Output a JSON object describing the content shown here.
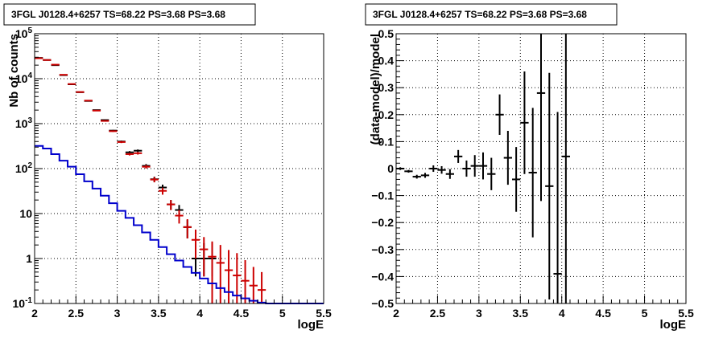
{
  "chart_data": [
    {
      "type": "line",
      "title": "3FGL J0128.4+6257 TS=68.22 PS=3.68 PS=3.68",
      "xlabel": "logE",
      "ylabel": "Nb of counts",
      "xlim": [
        2,
        5.5
      ],
      "ylim": [
        0.1,
        100000
      ],
      "yscale": "log",
      "grid": true,
      "x_ticks": [
        "2",
        "2.5",
        "3",
        "3.5",
        "4",
        "4.5",
        "5",
        "5.5"
      ],
      "y_ticks": [
        "10^-1",
        "1",
        "10",
        "10^2",
        "10^3",
        "10^4",
        "10^5"
      ],
      "bin_width": 0.1,
      "series": [
        {
          "color": "#000000",
          "style": "points-with-errors",
          "x": [
            2.05,
            2.15,
            2.25,
            2.35,
            2.45,
            2.55,
            2.65,
            2.75,
            2.85,
            2.95,
            3.05,
            3.15,
            3.25,
            3.35,
            3.45,
            3.55,
            3.65,
            3.75,
            3.85,
            3.95,
            4.05,
            4.15
          ],
          "y": [
            29000,
            26000,
            20000,
            12000,
            7500,
            5000,
            3200,
            2000,
            1200,
            700,
            400,
            230,
            250,
            115,
            58,
            38,
            16,
            12,
            5,
            1,
            1,
            1
          ],
          "yerr_low": [
            170,
            160,
            140,
            110,
            87,
            71,
            57,
            45,
            35,
            26,
            20,
            15,
            16,
            11,
            8,
            6,
            4,
            3.5,
            2.2,
            0.6,
            0.6,
            0.6
          ],
          "yerr_high": [
            170,
            160,
            140,
            110,
            87,
            71,
            57,
            45,
            35,
            26,
            20,
            15,
            16,
            11,
            8,
            6,
            4,
            3.5,
            2.2,
            1.2,
            1.2,
            1.2
          ]
        },
        {
          "color": "#cc0000",
          "style": "model-with-errors",
          "x": [
            2.05,
            2.15,
            2.25,
            2.35,
            2.45,
            2.55,
            2.65,
            2.75,
            2.85,
            2.95,
            3.05,
            3.15,
            3.25,
            3.35,
            3.45,
            3.55,
            3.65,
            3.75,
            3.85,
            3.95,
            4.05,
            4.15,
            4.25,
            4.35,
            4.45,
            4.55,
            4.65,
            4.75
          ],
          "y": [
            28500,
            26000,
            20500,
            12200,
            7600,
            5050,
            3250,
            1950,
            1150,
            680,
            390,
            210,
            220,
            110,
            57,
            32,
            16,
            9,
            5,
            2.6,
            1.6,
            1.1,
            0.8,
            0.55,
            0.42,
            0.32,
            0.25,
            0.2
          ],
          "yerr_low": [
            170,
            160,
            140,
            110,
            87,
            71,
            57,
            44,
            34,
            26,
            20,
            14,
            15,
            10,
            7.5,
            5.7,
            4,
            3,
            2.2,
            1.6,
            1.2,
            1,
            0.7,
            0.45,
            0.32,
            0.22,
            0.15,
            0.1
          ],
          "yerr_high": [
            170,
            160,
            140,
            110,
            87,
            71,
            57,
            44,
            34,
            26,
            20,
            14,
            15,
            10,
            7.5,
            5.7,
            4,
            3,
            2.5,
            1.8,
            1.4,
            1.3,
            1.2,
            1.0,
            0.9,
            0.6,
            0.4,
            0.3
          ]
        },
        {
          "color": "#0000cc",
          "style": "step",
          "edges": [
            2.0,
            2.1,
            2.2,
            2.3,
            2.4,
            2.5,
            2.6,
            2.7,
            2.8,
            2.9,
            3.0,
            3.1,
            3.2,
            3.3,
            3.4,
            3.5,
            3.6,
            3.7,
            3.8,
            3.9,
            4.0,
            4.1,
            4.2,
            4.3,
            4.4,
            4.5,
            4.6,
            4.7,
            4.8,
            4.9,
            5.0,
            5.1,
            5.2,
            5.3,
            5.4,
            5.5
          ],
          "y": [
            320,
            280,
            210,
            150,
            110,
            75,
            52,
            36,
            25,
            17,
            11.5,
            8,
            5.5,
            3.8,
            2.6,
            1.8,
            1.25,
            0.9,
            0.65,
            0.48,
            0.36,
            0.28,
            0.22,
            0.18,
            0.15,
            0.13,
            0.115,
            0.105,
            0.1,
            0.1,
            0.1,
            0.1,
            0.1,
            0.1,
            0.1
          ]
        }
      ]
    },
    {
      "type": "scatter",
      "title": "3FGL J0128.4+6257 TS=68.22 PS=3.68 PS=3.68",
      "xlabel": "logE",
      "ylabel": "(data-model)/model",
      "xlim": [
        2,
        5.5
      ],
      "ylim": [
        -0.5,
        0.5
      ],
      "grid": true,
      "x_ticks": [
        "2",
        "2.5",
        "3",
        "3.5",
        "4",
        "4.5",
        "5",
        "5.5"
      ],
      "y_ticks": [
        "−0.5",
        "−0.4",
        "−0.3",
        "−0.2",
        "−0.1",
        "0",
        "0.1",
        "0.2",
        "0.3",
        "0.4",
        "0.5"
      ],
      "bin_width": 0.1,
      "series": [
        {
          "color": "#000000",
          "style": "points-with-errors",
          "x": [
            2.05,
            2.15,
            2.25,
            2.35,
            2.45,
            2.55,
            2.65,
            2.75,
            2.85,
            2.95,
            3.05,
            3.15,
            3.25,
            3.35,
            3.45,
            3.55,
            3.65,
            3.75,
            3.85,
            3.95,
            4.05
          ],
          "y": [
            0.0,
            -0.01,
            -0.03,
            -0.025,
            0.0,
            -0.005,
            -0.02,
            0.045,
            0.0,
            0.01,
            0.01,
            -0.02,
            0.2,
            0.04,
            -0.04,
            0.17,
            -0.015,
            0.28,
            -0.065,
            -0.39,
            0.045
          ],
          "yerr": [
            0.005,
            0.005,
            0.007,
            0.009,
            0.012,
            0.014,
            0.018,
            0.024,
            0.03,
            0.04,
            0.05,
            0.06,
            0.075,
            0.1,
            0.12,
            0.19,
            0.24,
            0.4,
            0.42,
            0.6,
            0.7
          ]
        }
      ]
    }
  ]
}
